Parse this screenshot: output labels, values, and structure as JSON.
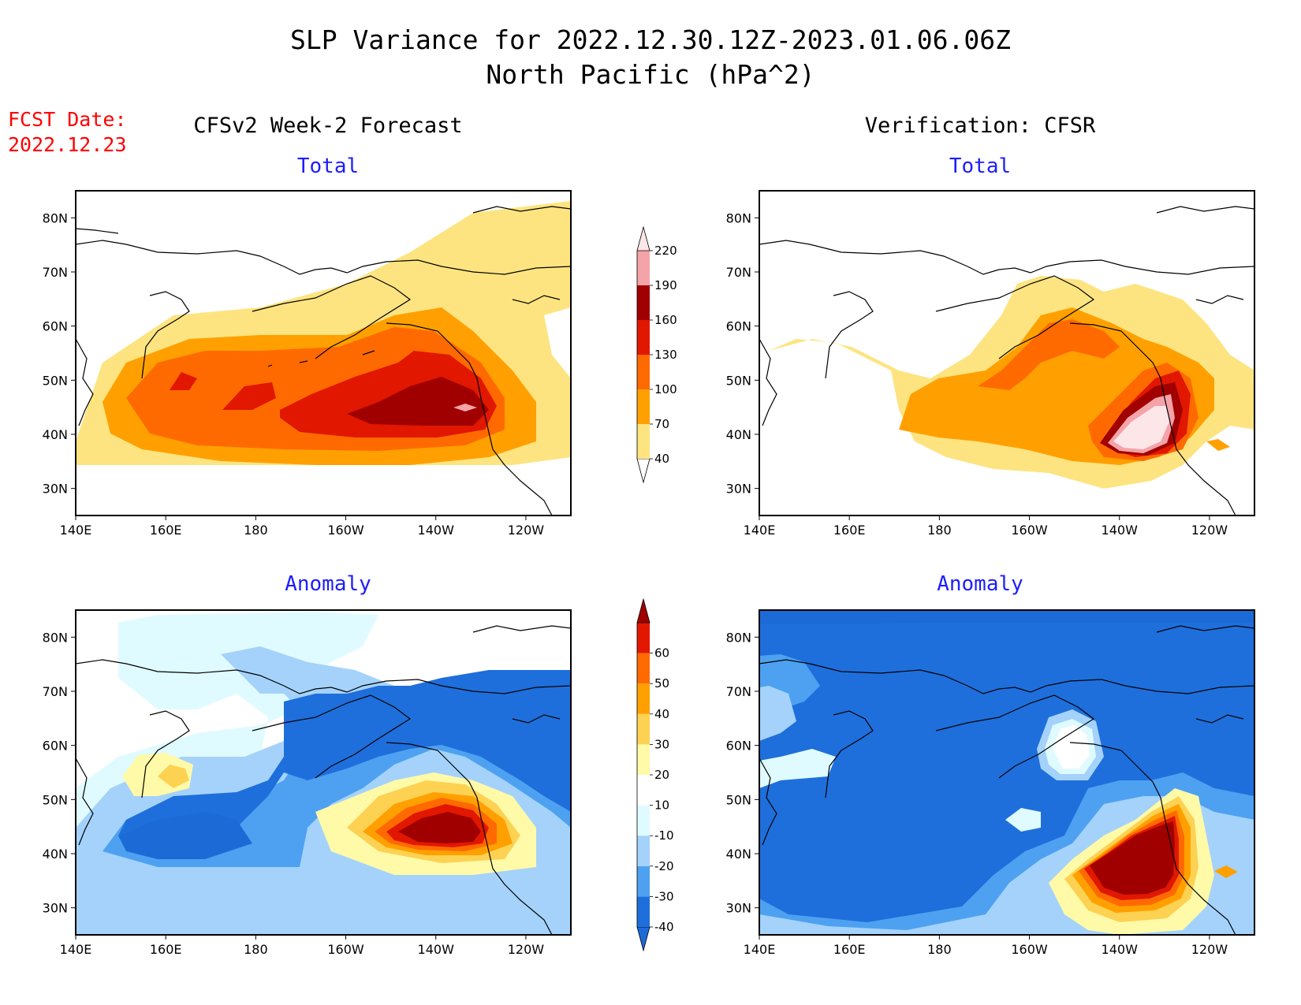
{
  "title": {
    "line1": "SLP Variance for 2022.12.30.12Z-2023.01.06.06Z",
    "line2": "North Pacific (hPa^2)"
  },
  "fcst": {
    "label": "FCST Date:",
    "date": "2022.12.23"
  },
  "columns": {
    "left": "CFSv2 Week-2 Forecast",
    "right": "Verification: CFSR"
  },
  "panels": {
    "tl": {
      "subtitle": "Total"
    },
    "tr": {
      "subtitle": "Total"
    },
    "bl": {
      "subtitle": "Anomaly"
    },
    "br": {
      "subtitle": "Anomaly"
    }
  },
  "axes": {
    "x_ticks": [
      "140E",
      "160E",
      "180",
      "160W",
      "140W",
      "120W"
    ],
    "y_ticks": [
      "80N",
      "70N",
      "60N",
      "50N",
      "40N",
      "30N"
    ]
  },
  "colorbars": {
    "total": {
      "labels": [
        "40",
        "70",
        "100",
        "130",
        "160",
        "190",
        "220"
      ],
      "colors": [
        "#ffffff",
        "#fde480",
        "#ffa000",
        "#ff6a00",
        "#e11700",
        "#a00000",
        "#f4a3a8",
        "#fde6e8"
      ]
    },
    "anomaly": {
      "labels": [
        "-40",
        "-30",
        "-20",
        "-10",
        "10",
        "20",
        "30",
        "40",
        "50",
        "60"
      ],
      "colors": [
        "#1c6ad6",
        "#1e6fdc",
        "#4da1f0",
        "#a4d2fb",
        "#e0fbff",
        "#ffffff",
        "#fffaa8",
        "#fdd252",
        "#ffa000",
        "#ff6a00",
        "#e11700",
        "#a00000"
      ]
    }
  }
}
